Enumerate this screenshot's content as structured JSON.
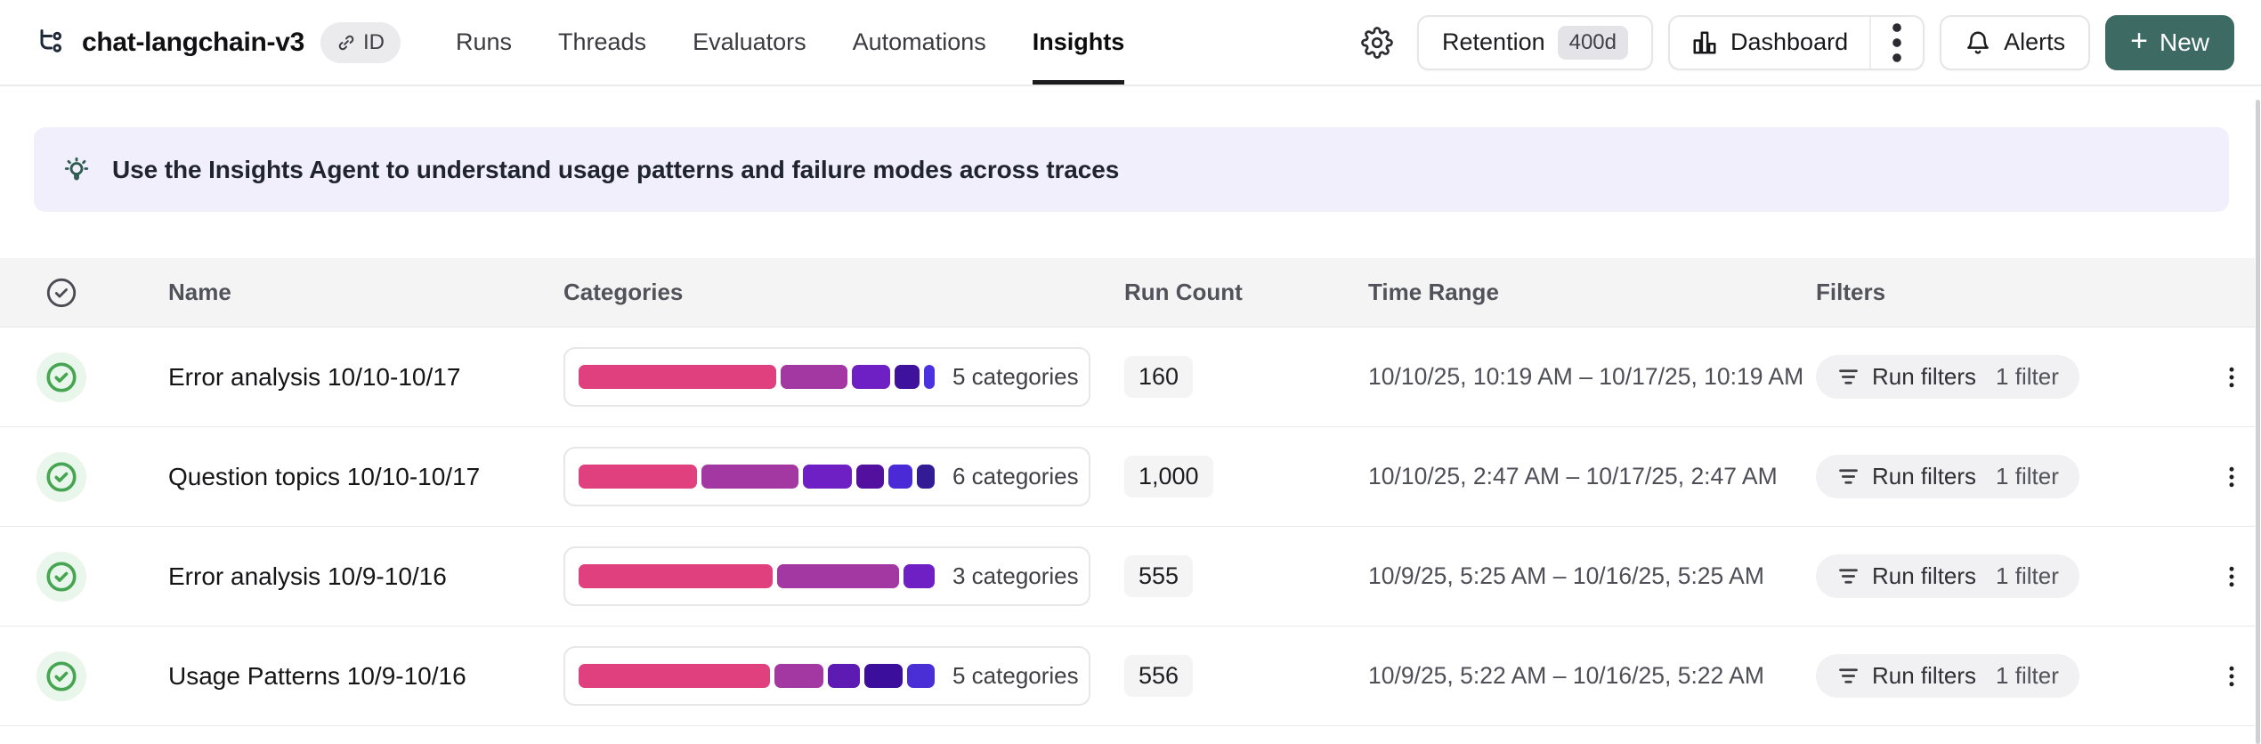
{
  "colors": {
    "accent-green": "#3D6A62",
    "banner-bg": "#F0EFFB",
    "success": "#45A551",
    "bar-pink": "#E0417E",
    "bar-fuchsia": "#A438A3",
    "bar-violet": "#6E20C4",
    "bar-indigo": "#3E129C",
    "bar-blue": "#4B31E0"
  },
  "header": {
    "title": "chat-langchain-v3",
    "id_badge_label": "ID",
    "tabs": [
      {
        "label": "Runs",
        "active": false
      },
      {
        "label": "Threads",
        "active": false
      },
      {
        "label": "Evaluators",
        "active": false
      },
      {
        "label": "Automations",
        "active": false
      },
      {
        "label": "Insights",
        "active": true
      }
    ],
    "retention_label": "Retention",
    "retention_value": "400d",
    "dashboard_label": "Dashboard",
    "alerts_label": "Alerts",
    "new_plus": "+",
    "new_label": "New"
  },
  "banner": {
    "text": "Use the Insights Agent to understand usage patterns and failure modes across traces"
  },
  "table": {
    "columns": {
      "name": "Name",
      "categories": "Categories",
      "run_count": "Run Count",
      "time_range": "Time Range",
      "filters": "Filters"
    },
    "rows": [
      {
        "name": "Error analysis 10/10-10/17",
        "categories_label": "5 categories",
        "segments": [
          {
            "color": "#E0417E",
            "pct": 56
          },
          {
            "color": "#A438A3",
            "pct": 19
          },
          {
            "color": "#6E20C4",
            "pct": 11
          },
          {
            "color": "#3E129C",
            "pct": 7
          },
          {
            "color": "#4B31E0",
            "pct": 3
          }
        ],
        "run_count": "160",
        "time_range": "10/10/25, 10:19 AM – 10/17/25, 10:19 AM",
        "filters_label": "Run filters",
        "filters_count": "1 filter"
      },
      {
        "name": "Question topics 10/10-10/17",
        "categories_label": "6 categories",
        "segments": [
          {
            "color": "#E0417E",
            "pct": 34
          },
          {
            "color": "#A438A3",
            "pct": 28
          },
          {
            "color": "#6E20C4",
            "pct": 14
          },
          {
            "color": "#530F9E",
            "pct": 8
          },
          {
            "color": "#4A2AD6",
            "pct": 7
          },
          {
            "color": "#331B96",
            "pct": 5
          }
        ],
        "run_count": "1,000",
        "time_range": "10/10/25, 2:47 AM – 10/17/25, 2:47 AM",
        "filters_label": "Run filters",
        "filters_count": "1 filter"
      },
      {
        "name": "Error analysis 10/9-10/16",
        "categories_label": "3 categories",
        "segments": [
          {
            "color": "#E0417E",
            "pct": 56
          },
          {
            "color": "#A438A3",
            "pct": 35
          },
          {
            "color": "#6E20C4",
            "pct": 9
          }
        ],
        "run_count": "555",
        "time_range": "10/9/25, 5:25 AM – 10/16/25, 5:25 AM",
        "filters_label": "Run filters",
        "filters_count": "1 filter"
      },
      {
        "name": "Usage Patterns 10/9-10/16",
        "categories_label": "5 categories",
        "segments": [
          {
            "color": "#E0417E",
            "pct": 55
          },
          {
            "color": "#A438A3",
            "pct": 14
          },
          {
            "color": "#5E1BB4",
            "pct": 9
          },
          {
            "color": "#3B0F9C",
            "pct": 11
          },
          {
            "color": "#4A2FD6",
            "pct": 8
          }
        ],
        "run_count": "556",
        "time_range": "10/9/25, 5:22 AM – 10/16/25, 5:22 AM",
        "filters_label": "Run filters",
        "filters_count": "1 filter"
      }
    ]
  }
}
